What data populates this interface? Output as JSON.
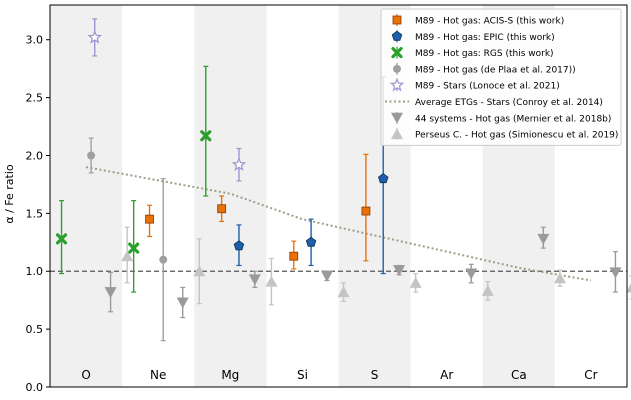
{
  "chart_data": {
    "type": "scatter",
    "categories": [
      "O",
      "Ne",
      "Mg",
      "Si",
      "S",
      "Ar",
      "Ca",
      "Cr"
    ],
    "ylabel": "α / Fe ratio",
    "ylim": [
      0.0,
      3.3
    ],
    "yticks": [
      "0.0",
      "0.5",
      "1.0",
      "1.5",
      "2.0",
      "2.5",
      "3.0"
    ],
    "reference_line": 1.0,
    "legend_position": "top-right",
    "series": [
      {
        "name": "M89 - Hot gas: ACIS-S (this work)",
        "color": "#e8710a",
        "marker": "square",
        "points": [
          {
            "x": "Ne",
            "y": 1.45,
            "lo": 1.3,
            "hi": 1.57
          },
          {
            "x": "Mg",
            "y": 1.54,
            "lo": 1.43,
            "hi": 1.65
          },
          {
            "x": "Si",
            "y": 1.13,
            "lo": 1.02,
            "hi": 1.26
          },
          {
            "x": "S",
            "y": 1.52,
            "lo": 1.09,
            "hi": 2.01
          }
        ]
      },
      {
        "name": "M89 - Hot gas: EPIC (this work)",
        "color": "#1f5faa",
        "marker": "pentagon",
        "points": [
          {
            "x": "Mg",
            "y": 1.22,
            "lo": 1.05,
            "hi": 1.4
          },
          {
            "x": "Si",
            "y": 1.25,
            "lo": 1.05,
            "hi": 1.45
          },
          {
            "x": "S",
            "y": 1.8,
            "lo": 0.98,
            "hi": 2.68
          }
        ]
      },
      {
        "name": "M89 - Hot gas: RGS (this work)",
        "color": "#2ca02c",
        "marker": "x",
        "points": [
          {
            "x": "O",
            "y": 1.28,
            "lo": 0.98,
            "hi": 1.61
          },
          {
            "x": "Ne",
            "y": 1.2,
            "lo": 0.82,
            "hi": 1.61
          },
          {
            "x": "Mg",
            "y": 2.17,
            "lo": 1.65,
            "hi": 2.77
          }
        ]
      },
      {
        "name": "M89 - Hot gas (de Plaa et al. 2017))",
        "color": "#a0a0a0",
        "marker": "circle",
        "points": [
          {
            "x": "O",
            "y": 2.0,
            "lo": 1.85,
            "hi": 2.15
          },
          {
            "x": "Ne",
            "y": 1.1,
            "lo": 0.4,
            "hi": 1.8
          }
        ]
      },
      {
        "name": "M89 - Stars (Lonoce et al. 2021)",
        "color": "#9b96d2",
        "marker": "star",
        "points": [
          {
            "x": "O",
            "y": 3.02,
            "lo": 2.86,
            "hi": 3.18
          },
          {
            "x": "Mg",
            "y": 1.92,
            "lo": 1.78,
            "hi": 2.06
          }
        ]
      },
      {
        "name": "Average ETGs - Stars (Conroy et al. 2014)",
        "color": "#9e9e88",
        "marker": "dotted-line",
        "points": [
          {
            "x": "O",
            "y": 1.9
          },
          {
            "x": "Mg",
            "y": 1.67
          },
          {
            "x": "Si",
            "y": 1.45
          },
          {
            "x": "Ca",
            "y": 1.03
          },
          {
            "x": "Cr",
            "y": 0.92
          }
        ]
      },
      {
        "name": "44 systems - Hot gas (Mernier et al. 2018b)",
        "color": "#9a9a9a",
        "marker": "triangle-down",
        "points": [
          {
            "x": "O",
            "y": 0.82,
            "lo": 0.65,
            "hi": 0.99
          },
          {
            "x": "Ne",
            "y": 0.73,
            "lo": 0.6,
            "hi": 0.86
          },
          {
            "x": "Mg",
            "y": 0.93,
            "lo": 0.86,
            "hi": 1.0
          },
          {
            "x": "Si",
            "y": 0.96,
            "lo": 0.92,
            "hi": 1.0
          },
          {
            "x": "S",
            "y": 1.01,
            "lo": 0.97,
            "hi": 1.05
          },
          {
            "x": "Ar",
            "y": 0.98,
            "lo": 0.9,
            "hi": 1.06
          },
          {
            "x": "Ca",
            "y": 1.28,
            "lo": 1.2,
            "hi": 1.38
          },
          {
            "x": "Cr",
            "y": 0.99,
            "lo": 0.82,
            "hi": 1.17
          }
        ]
      },
      {
        "name": "Perseus C. - Hot gas (Simionescu et al. 2019)",
        "color": "#c4c4c4",
        "marker": "triangle-up",
        "points": [
          {
            "x": "O",
            "y": 1.13,
            "lo": 0.9,
            "hi": 1.38
          },
          {
            "x": "Ne",
            "y": 1.0,
            "lo": 0.72,
            "hi": 1.28
          },
          {
            "x": "Mg",
            "y": 0.91,
            "lo": 0.71,
            "hi": 1.11
          },
          {
            "x": "Si",
            "y": 0.82,
            "lo": 0.74,
            "hi": 0.9
          },
          {
            "x": "S",
            "y": 0.9,
            "lo": 0.82,
            "hi": 0.98
          },
          {
            "x": "Ar",
            "y": 0.83,
            "lo": 0.75,
            "hi": 0.91
          },
          {
            "x": "Ca",
            "y": 0.94,
            "lo": 0.87,
            "hi": 1.01
          },
          {
            "x": "Cr",
            "y": 0.86,
            "lo": 0.76,
            "hi": 0.96
          }
        ]
      }
    ]
  }
}
